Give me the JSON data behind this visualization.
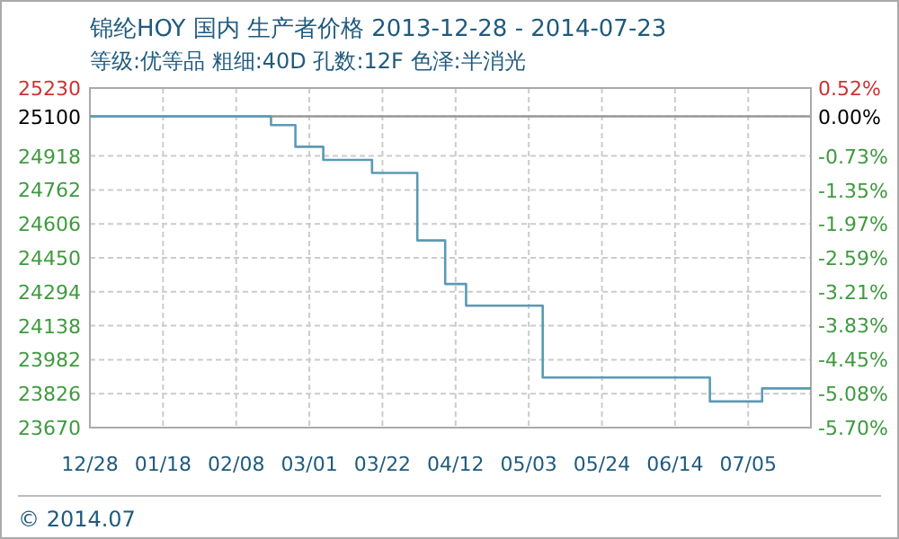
{
  "chart_data": {
    "type": "step",
    "title": "锦纶HOY   国内 生产者价格 2013-12-28 - 2014-07-23",
    "subtitle": "等级:优等品 粗细:40D 孔数:12F 色泽:半消光",
    "annotations": [
      "© 2014.07"
    ],
    "x": [
      "2013-12-28",
      "2014-02-18",
      "2014-02-25",
      "2014-03-05",
      "2014-03-19",
      "2014-04-01",
      "2014-04-09",
      "2014-04-15",
      "2014-05-07",
      "2014-06-24",
      "2014-07-09",
      "2014-07-23"
    ],
    "values": [
      25100,
      25060,
      24960,
      24900,
      24840,
      24530,
      24330,
      24230,
      23900,
      23790,
      23850,
      23850
    ],
    "color": "#5b9ab5",
    "xlim": [
      "2013-12-28",
      "2014-07-23"
    ],
    "xticks": [
      {
        "value": "2013-12-28",
        "label": "12/28"
      },
      {
        "value": "2014-01-18",
        "label": "01/18"
      },
      {
        "value": "2014-02-08",
        "label": "02/08"
      },
      {
        "value": "2014-03-01",
        "label": "03/01"
      },
      {
        "value": "2014-03-22",
        "label": "03/22"
      },
      {
        "value": "2014-04-12",
        "label": "04/12"
      },
      {
        "value": "2014-05-03",
        "label": "05/03"
      },
      {
        "value": "2014-05-24",
        "label": "05/24"
      },
      {
        "value": "2014-06-14",
        "label": "06/14"
      },
      {
        "value": "2014-07-05",
        "label": "07/05"
      }
    ],
    "ylim": [
      23670,
      25230
    ],
    "yticks": [
      23670,
      23826,
      23982,
      24138,
      24294,
      24450,
      24606,
      24762,
      24918,
      25100,
      25230
    ],
    "y2lim": [
      -5.7,
      0.52
    ],
    "y2ticks": [
      {
        "value": -5.7,
        "label": "-5.70%"
      },
      {
        "value": -5.08,
        "label": "-5.08%"
      },
      {
        "value": -4.45,
        "label": "-4.45%"
      },
      {
        "value": -3.83,
        "label": "-3.83%"
      },
      {
        "value": -3.21,
        "label": "-3.21%"
      },
      {
        "value": -2.59,
        "label": "-2.59%"
      },
      {
        "value": -1.97,
        "label": "-1.97%"
      },
      {
        "value": -1.35,
        "label": "-1.35%"
      },
      {
        "value": -0.73,
        "label": "-0.73%"
      },
      {
        "value": 0.0,
        "label": "0.00%"
      },
      {
        "value": 0.52,
        "label": "0.52%"
      }
    ],
    "ref_lines": [
      {
        "axis": "y",
        "value": 25100,
        "color": "#999999"
      }
    ],
    "grid": true
  }
}
